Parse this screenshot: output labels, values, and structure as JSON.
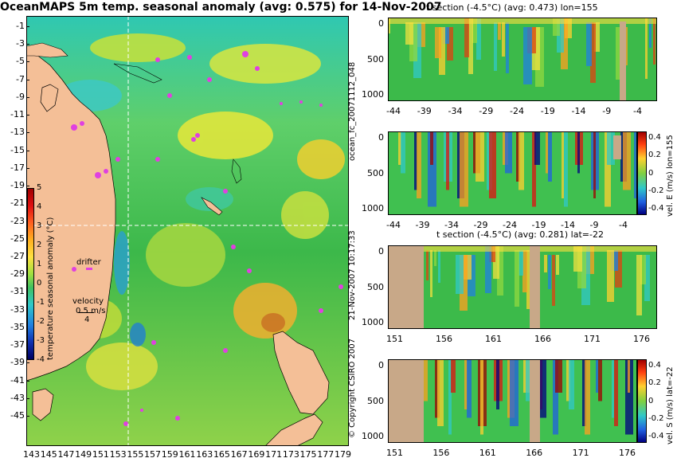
{
  "title": "OceanMAPS 5m temp. seasonal anomaly (avg: 0.575) for 14-Nov-2007",
  "map": {
    "lat_ticks": [
      "-1",
      "-3",
      "-5",
      "-7",
      "-9",
      "-11",
      "-13",
      "-15",
      "-17",
      "-19",
      "-21",
      "-23",
      "-25",
      "-27",
      "-29",
      "-31",
      "-33",
      "-35",
      "-37",
      "-39",
      "-41",
      "-43",
      "-45"
    ],
    "lon_ticks": [
      "143",
      "145",
      "147",
      "149",
      "151",
      "153",
      "155",
      "157",
      "159",
      "161",
      "163",
      "165",
      "167",
      "169",
      "171",
      "173",
      "175",
      "177",
      "179"
    ],
    "colorbar_label": "temperature seasonal anomaly (°C)",
    "colorbar_ticks": [
      "5",
      "4",
      "3",
      "2",
      "1",
      "0",
      "-1",
      "-2",
      "-3",
      "-4"
    ],
    "drifter_label": "drifter",
    "velocity_label": "velocity",
    "velocity_value": "0.5 m/s",
    "velocity_scale": "4"
  },
  "sections": [
    {
      "title": "t section (-4.5°C) (avg: 0.473) lon=155",
      "x_ticks": [
        "-44",
        "-39",
        "-34",
        "-29",
        "-24",
        "-19",
        "-14",
        "-9",
        "-4"
      ],
      "y_ticks": [
        "0",
        "500",
        "1000"
      ]
    },
    {
      "title": "",
      "x_ticks": [
        "-44",
        "-39",
        "-34",
        "-29",
        "-24",
        "-19",
        "-14",
        "-9",
        "-4"
      ],
      "y_ticks": [
        "0",
        "500",
        "1000"
      ],
      "colorbar_label": "vel. E (m/s) lon=155",
      "colorbar_ticks": [
        "0.4",
        "0.2",
        "0",
        "-0.2",
        "-0.4"
      ]
    },
    {
      "title": "t section (-4.5°C) (avg: 0.281) lat=-22",
      "x_ticks": [
        "151",
        "156",
        "161",
        "166",
        "171",
        "176"
      ],
      "y_ticks": [
        "0",
        "500",
        "1000"
      ]
    },
    {
      "title": "",
      "x_ticks": [
        "151",
        "156",
        "161",
        "166",
        "171",
        "176"
      ],
      "y_ticks": [
        "0",
        "500",
        "1000"
      ],
      "colorbar_label": "vel. S (m/s) lat=-22",
      "colorbar_ticks": [
        "0.4",
        "0.2",
        "0",
        "-0.2",
        "-0.4"
      ]
    }
  ],
  "side_labels": {
    "file": "ocean_fc_20071112_048",
    "date": "21-Nov-2007 10:17:33",
    "copyright": "© Copyright CSIRO 2007"
  },
  "chart_data": {
    "type": "heatmap",
    "title": "OceanMAPS 5m temp. seasonal anomaly (avg: 0.575) for 14-Nov-2007",
    "xlim": [
      143,
      180
    ],
    "ylim": [
      -45,
      0
    ],
    "colorbar_range": [
      -4,
      5
    ]
  }
}
